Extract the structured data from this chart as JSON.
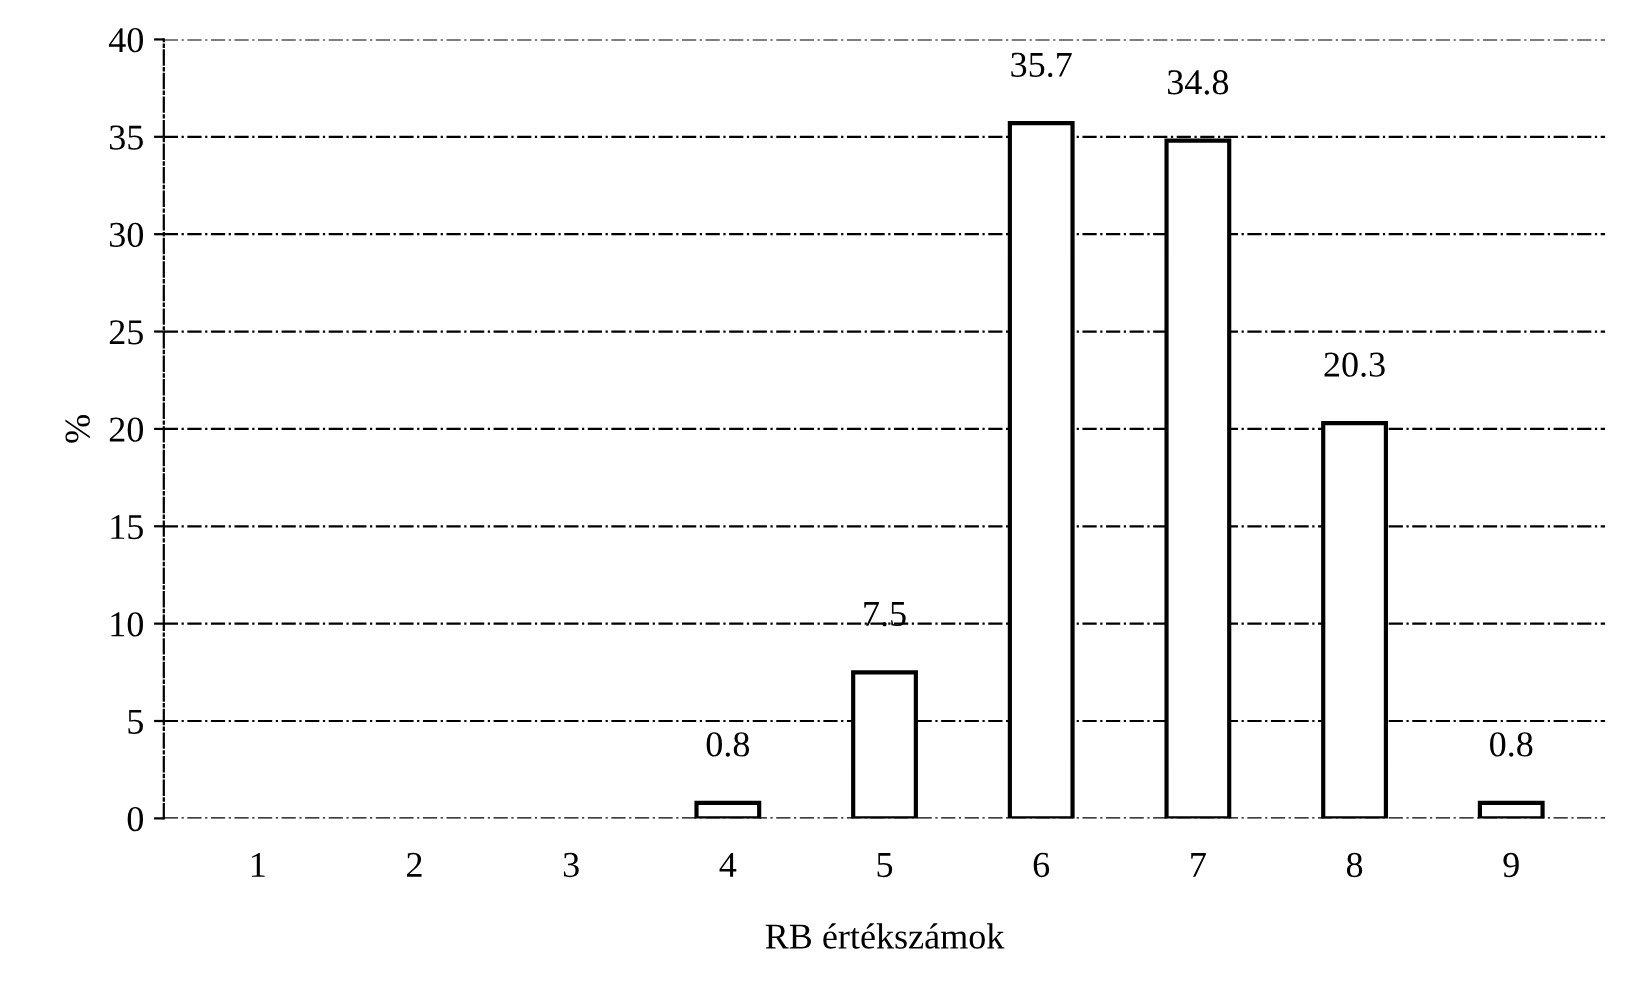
{
  "chart_data": {
    "type": "bar",
    "xlabel": "RB értékszámok",
    "ylabel": "%",
    "categories": [
      "1",
      "2",
      "3",
      "4",
      "5",
      "6",
      "7",
      "8",
      "9"
    ],
    "values": [
      null,
      null,
      null,
      0.8,
      7.5,
      35.7,
      34.8,
      20.3,
      0.8
    ],
    "value_labels": [
      null,
      null,
      null,
      "0.8",
      "7.5",
      "35.7",
      "34.8",
      "20.3",
      "0.8"
    ],
    "color": "#ffffff",
    "ylim": [
      0,
      40
    ],
    "yticks": [
      0,
      5,
      10,
      15,
      20,
      25,
      30,
      35,
      40
    ],
    "grid": "y",
    "line_style": "dashed"
  }
}
